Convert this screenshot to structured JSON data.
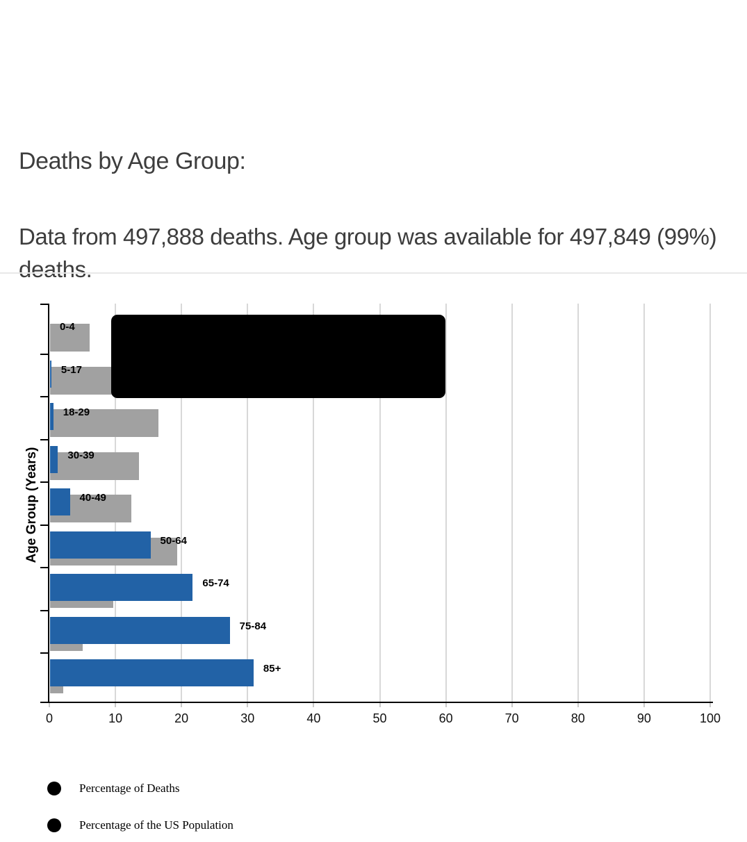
{
  "header": {
    "title": "Deaths by Age Group:",
    "subtitle": "Data from 497,888 deaths. Age group was available for 497,849 (99%) deaths."
  },
  "chart_data": {
    "type": "bar",
    "orientation": "horizontal",
    "title": "Deaths by Age Group",
    "xlabel": "",
    "ylabel": "Age Group (Years)",
    "xlim": [
      0,
      100
    ],
    "x_ticks": [
      0,
      10,
      20,
      30,
      40,
      50,
      60,
      70,
      80,
      90,
      100
    ],
    "grid": true,
    "legend_position": "bottom",
    "categories": [
      "0-4",
      "5-17",
      "18-29",
      "30-39",
      "40-49",
      "50-64",
      "65-74",
      "75-84",
      "85+"
    ],
    "series": [
      {
        "name": "Percentage of Deaths",
        "color": "#2262a6",
        "values": [
          0.0,
          0.2,
          0.5,
          1.2,
          3.0,
          15.2,
          21.6,
          27.2,
          30.8
        ]
      },
      {
        "name": "Percentage of the US Population",
        "color": "#a1a1a1",
        "values": [
          6.0,
          16.3,
          16.4,
          13.5,
          12.3,
          19.2,
          9.6,
          4.9,
          2.0
        ]
      }
    ],
    "tooltip_overlay": {
      "present": true,
      "color": "#000000",
      "text": ""
    }
  },
  "legend": {
    "items": [
      {
        "label": "Percentage of Deaths",
        "marker_color": "#000000"
      },
      {
        "label": "Percentage of the US Population",
        "marker_color": "#000000"
      }
    ]
  },
  "colors": {
    "deaths_bar": "#2262a6",
    "population_bar": "#a1a1a1",
    "gridline": "#d8d8d8",
    "axis": "#000000",
    "tooltip": "#000000",
    "heading_text": "#3d3d3d"
  }
}
